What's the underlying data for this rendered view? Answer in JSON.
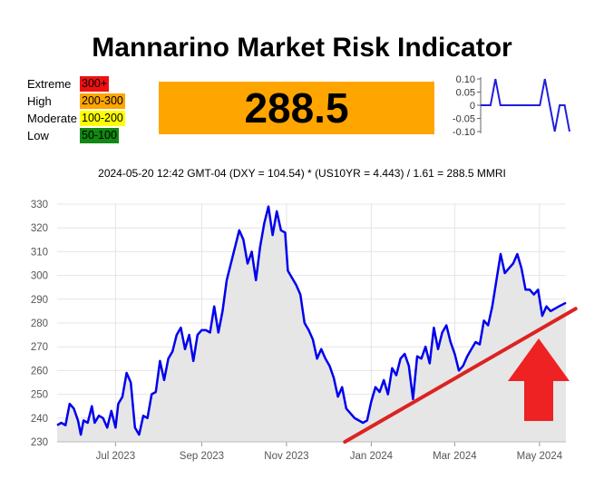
{
  "title": "Mannarino Market Risk Indicator",
  "current_value": "288.5",
  "risk_levels": [
    {
      "name": "Extreme",
      "range": "300+",
      "color": "#ee1111"
    },
    {
      "name": "High",
      "range": "200-300",
      "color": "#ffa500"
    },
    {
      "name": "Moderate",
      "range": "100-200",
      "color": "#ffff00"
    },
    {
      "name": "Low",
      "range": "50-100",
      "color": "#118811"
    }
  ],
  "value_box_color": "#ffa500",
  "formula": "2024-05-20 12:42 GMT-04 (DXY = 104.54) * (US10YR = 4.443) / 1.61 = 288.5 MMRI",
  "chart_data": [
    {
      "type": "line",
      "role": "change sparkline",
      "y_ticks": [
        "0.10",
        "0.05",
        "0",
        "-0.05",
        "-0.10"
      ],
      "ylim": [
        -0.1,
        0.1
      ],
      "color": "#1f1fdd",
      "values": [
        0,
        0,
        0,
        0.1,
        0,
        0,
        0,
        0,
        0,
        0,
        0,
        0,
        0,
        0.1,
        0,
        -0.1,
        0,
        0,
        -0.1
      ]
    },
    {
      "type": "area",
      "role": "MMRI history",
      "ylim": [
        230,
        330
      ],
      "y_ticks": [
        230,
        240,
        250,
        260,
        270,
        280,
        290,
        300,
        310,
        320,
        330
      ],
      "x_tick_labels": [
        "Jul 2023",
        "Sep 2023",
        "Nov 2023",
        "Jan 2024",
        "Mar 2024",
        "May 2024"
      ],
      "x_tick_dates": [
        "2023-07-01",
        "2023-09-01",
        "2023-11-01",
        "2024-01-01",
        "2024-03-01",
        "2024-05-01"
      ],
      "x_range": [
        "2023-05-20",
        "2024-05-20"
      ],
      "line_color": "#0000ee",
      "fill_color": "#e6e6e6",
      "grid": true,
      "series": [
        {
          "points": [
            [
              "2023-05-20",
              237
            ],
            [
              "2023-05-23",
              238
            ],
            [
              "2023-05-26",
              237
            ],
            [
              "2023-05-29",
              246
            ],
            [
              "2023-06-01",
              244
            ],
            [
              "2023-06-04",
              239
            ],
            [
              "2023-06-06",
              233
            ],
            [
              "2023-06-08",
              239
            ],
            [
              "2023-06-11",
              238
            ],
            [
              "2023-06-14",
              245
            ],
            [
              "2023-06-16",
              238
            ],
            [
              "2023-06-19",
              241
            ],
            [
              "2023-06-22",
              240
            ],
            [
              "2023-06-25",
              236
            ],
            [
              "2023-06-28",
              243
            ],
            [
              "2023-07-01",
              236
            ],
            [
              "2023-07-03",
              246
            ],
            [
              "2023-07-06",
              249
            ],
            [
              "2023-07-09",
              259
            ],
            [
              "2023-07-12",
              255
            ],
            [
              "2023-07-15",
              236
            ],
            [
              "2023-07-18",
              233
            ],
            [
              "2023-07-21",
              241
            ],
            [
              "2023-07-24",
              240
            ],
            [
              "2023-07-27",
              250
            ],
            [
              "2023-07-30",
              251
            ],
            [
              "2023-08-02",
              264
            ],
            [
              "2023-08-05",
              256
            ],
            [
              "2023-08-08",
              265
            ],
            [
              "2023-08-11",
              268
            ],
            [
              "2023-08-14",
              275
            ],
            [
              "2023-08-17",
              278
            ],
            [
              "2023-08-20",
              269
            ],
            [
              "2023-08-23",
              275
            ],
            [
              "2023-08-26",
              264
            ],
            [
              "2023-08-29",
              275
            ],
            [
              "2023-09-01",
              277
            ],
            [
              "2023-09-04",
              277
            ],
            [
              "2023-09-07",
              276
            ],
            [
              "2023-09-10",
              287
            ],
            [
              "2023-09-13",
              276
            ],
            [
              "2023-09-16",
              285
            ],
            [
              "2023-09-19",
              298
            ],
            [
              "2023-09-22",
              305
            ],
            [
              "2023-09-25",
              312
            ],
            [
              "2023-09-28",
              319
            ],
            [
              "2023-10-01",
              315
            ],
            [
              "2023-10-04",
              305
            ],
            [
              "2023-10-07",
              310
            ],
            [
              "2023-10-10",
              298
            ],
            [
              "2023-10-13",
              312
            ],
            [
              "2023-10-16",
              322
            ],
            [
              "2023-10-19",
              329
            ],
            [
              "2023-10-22",
              317
            ],
            [
              "2023-10-25",
              327
            ],
            [
              "2023-10-28",
              319
            ],
            [
              "2023-10-31",
              318
            ],
            [
              "2023-11-02",
              302
            ],
            [
              "2023-11-05",
              299
            ],
            [
              "2023-11-08",
              296
            ],
            [
              "2023-11-11",
              292
            ],
            [
              "2023-11-14",
              280
            ],
            [
              "2023-11-17",
              277
            ],
            [
              "2023-11-20",
              273
            ],
            [
              "2023-11-23",
              265
            ],
            [
              "2023-11-26",
              269
            ],
            [
              "2023-11-29",
              265
            ],
            [
              "2023-12-02",
              262
            ],
            [
              "2023-12-05",
              257
            ],
            [
              "2023-12-08",
              249
            ],
            [
              "2023-12-11",
              253
            ],
            [
              "2023-12-14",
              244
            ],
            [
              "2023-12-17",
              242
            ],
            [
              "2023-12-20",
              240
            ],
            [
              "2023-12-23",
              239
            ],
            [
              "2023-12-26",
              238
            ],
            [
              "2023-12-29",
              239
            ],
            [
              "2024-01-01",
              247
            ],
            [
              "2024-01-04",
              253
            ],
            [
              "2024-01-07",
              251
            ],
            [
              "2024-01-10",
              256
            ],
            [
              "2024-01-13",
              250
            ],
            [
              "2024-01-16",
              261
            ],
            [
              "2024-01-19",
              258
            ],
            [
              "2024-01-22",
              265
            ],
            [
              "2024-01-25",
              267
            ],
            [
              "2024-01-28",
              262
            ],
            [
              "2024-01-31",
              248
            ],
            [
              "2024-02-03",
              266
            ],
            [
              "2024-02-06",
              265
            ],
            [
              "2024-02-09",
              270
            ],
            [
              "2024-02-12",
              263
            ],
            [
              "2024-02-15",
              278
            ],
            [
              "2024-02-18",
              269
            ],
            [
              "2024-02-21",
              276
            ],
            [
              "2024-02-24",
              279
            ],
            [
              "2024-02-27",
              272
            ],
            [
              "2024-03-01",
              267
            ],
            [
              "2024-03-04",
              260
            ],
            [
              "2024-03-07",
              262
            ],
            [
              "2024-03-10",
              266
            ],
            [
              "2024-03-13",
              269
            ],
            [
              "2024-03-16",
              272
            ],
            [
              "2024-03-19",
              271
            ],
            [
              "2024-03-22",
              281
            ],
            [
              "2024-03-25",
              279
            ],
            [
              "2024-03-28",
              287
            ],
            [
              "2024-03-31",
              298
            ],
            [
              "2024-04-03",
              309
            ],
            [
              "2024-04-06",
              301
            ],
            [
              "2024-04-09",
              303
            ],
            [
              "2024-04-12",
              305
            ],
            [
              "2024-04-15",
              309
            ],
            [
              "2024-04-18",
              303
            ],
            [
              "2024-04-21",
              294
            ],
            [
              "2024-04-24",
              294
            ],
            [
              "2024-04-27",
              292
            ],
            [
              "2024-04-30",
              294
            ],
            [
              "2024-05-03",
              283
            ],
            [
              "2024-05-06",
              287
            ],
            [
              "2024-05-09",
              285
            ],
            [
              "2024-05-12",
              286
            ],
            [
              "2024-05-15",
              287
            ],
            [
              "2024-05-20",
              288.5
            ]
          ]
        }
      ],
      "overlays": [
        {
          "kind": "trendline",
          "color": "#dd2222",
          "from": [
            "2023-12-13",
            230
          ],
          "to": [
            "2024-05-27",
            286
          ]
        },
        {
          "kind": "up-arrow",
          "color": "#ee2222"
        }
      ]
    }
  ]
}
